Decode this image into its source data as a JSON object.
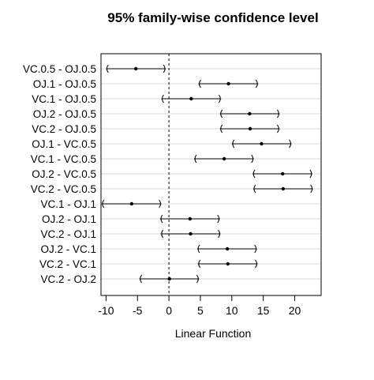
{
  "chart_data": {
    "type": "interval",
    "title": "95% family-wise confidence level",
    "xlabel": "Linear Function",
    "ylabel": "",
    "xlim": [
      -10.8,
      24.2
    ],
    "xticks": [
      -10,
      -5,
      0,
      5,
      10,
      15,
      20
    ],
    "xtick_labels": [
      "-10",
      "-5",
      "0",
      "5",
      "10",
      "15",
      "20"
    ],
    "reference_line": 0,
    "grid": "horizontal",
    "comparisons": [
      {
        "label": "VC.0.5 - OJ.0.5",
        "estimate": -5.25,
        "lower": -10.0,
        "upper": -0.5
      },
      {
        "label": "OJ.1 - OJ.0.5",
        "estimate": 9.47,
        "lower": 4.7,
        "upper": 14.2
      },
      {
        "label": "VC.1 - OJ.0.5",
        "estimate": 3.54,
        "lower": -1.2,
        "upper": 8.3
      },
      {
        "label": "OJ.2 - OJ.0.5",
        "estimate": 12.83,
        "lower": 8.1,
        "upper": 17.6
      },
      {
        "label": "VC.2 - OJ.0.5",
        "estimate": 12.91,
        "lower": 8.1,
        "upper": 17.6
      },
      {
        "label": "OJ.1 - VC.0.5",
        "estimate": 14.72,
        "lower": 10.0,
        "upper": 19.5
      },
      {
        "label": "VC.1 - VC.0.5",
        "estimate": 8.79,
        "lower": 4.0,
        "upper": 13.5
      },
      {
        "label": "OJ.2 - VC.0.5",
        "estimate": 18.08,
        "lower": 13.3,
        "upper": 22.8
      },
      {
        "label": "VC.2 - VC.0.5",
        "estimate": 18.16,
        "lower": 13.4,
        "upper": 22.9
      },
      {
        "label": "VC.1 - OJ.1",
        "estimate": -5.93,
        "lower": -10.7,
        "upper": -1.2
      },
      {
        "label": "OJ.2 - OJ.1",
        "estimate": 3.36,
        "lower": -1.4,
        "upper": 8.1
      },
      {
        "label": "VC.2 - OJ.1",
        "estimate": 3.44,
        "lower": -1.3,
        "upper": 8.2
      },
      {
        "label": "OJ.2 - VC.1",
        "estimate": 9.29,
        "lower": 4.5,
        "upper": 14.0
      },
      {
        "label": "VC.2 - VC.1",
        "estimate": 9.37,
        "lower": 4.6,
        "upper": 14.1
      },
      {
        "label": "VC.2 - OJ.2",
        "estimate": 0.08,
        "lower": -4.7,
        "upper": 4.8
      }
    ]
  }
}
